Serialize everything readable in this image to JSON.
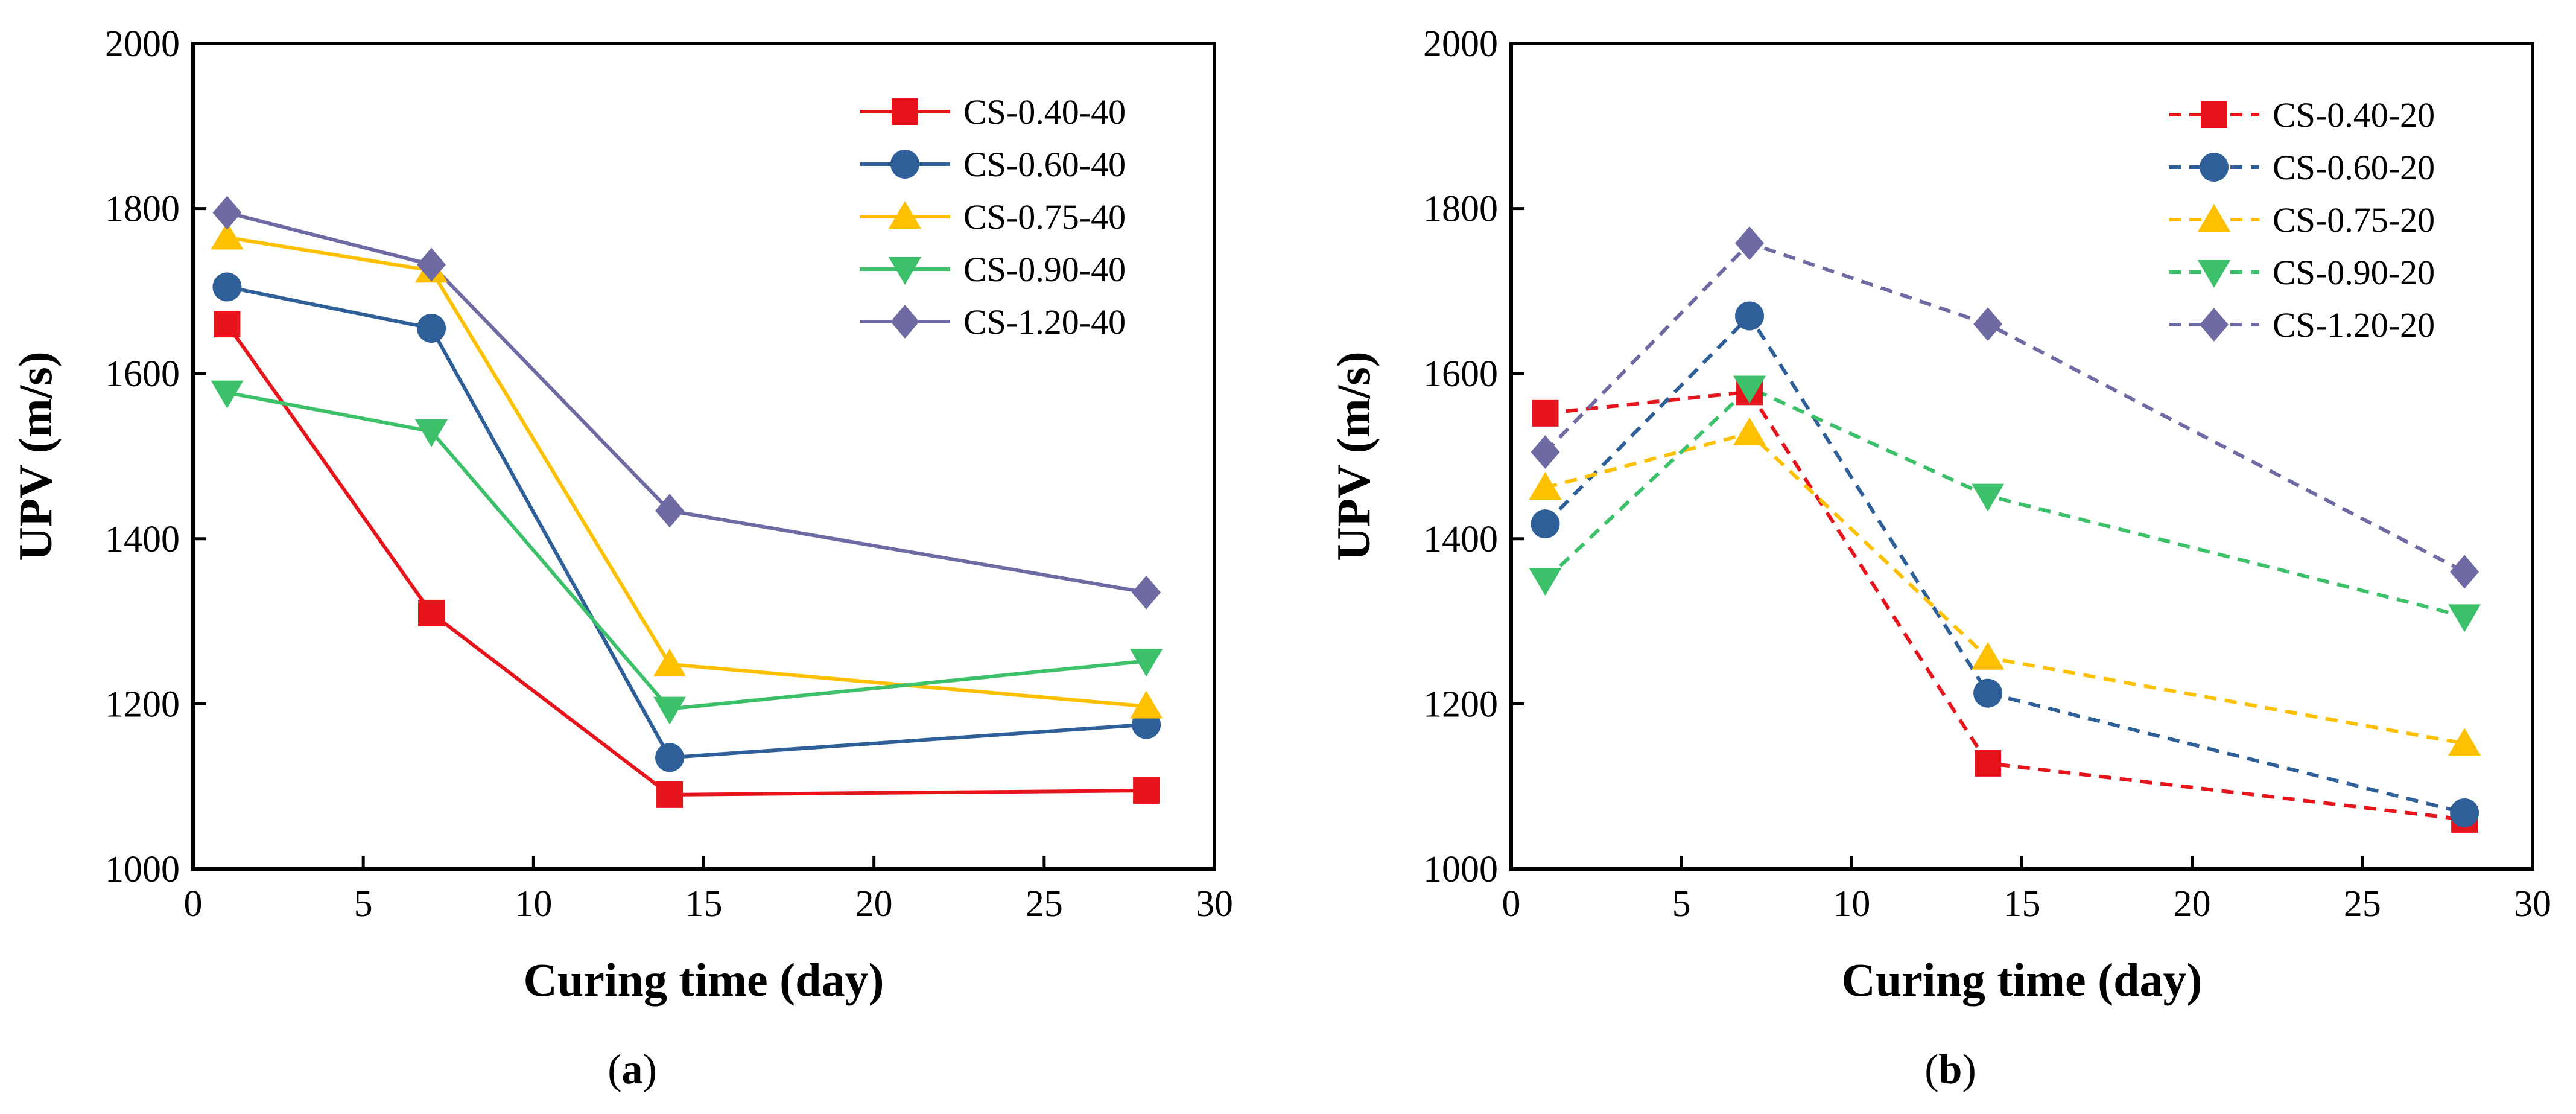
{
  "figure": {
    "panel_labels": [
      {
        "open": "(",
        "letter": "a",
        "close": ")"
      },
      {
        "open": "(",
        "letter": "b",
        "close": ")"
      }
    ]
  },
  "chart_data": [
    {
      "type": "line",
      "panel": "a",
      "title": "",
      "xlabel": "Curing time (day)",
      "ylabel": "UPV (m/s)",
      "xlim": [
        0,
        30
      ],
      "ylim": [
        1000,
        2000
      ],
      "xticks": [
        0,
        5,
        10,
        15,
        20,
        25,
        30
      ],
      "yticks": [
        1000,
        1200,
        1400,
        1600,
        1800,
        2000
      ],
      "legend_position": "top-right",
      "line_style": "solid",
      "x": [
        1,
        7,
        14,
        28
      ],
      "series": [
        {
          "name": "CS-0.40-40",
          "color": "#e8141b",
          "marker": "square",
          "values": [
            1660,
            1310,
            1090,
            1095
          ]
        },
        {
          "name": "CS-0.60-40",
          "color": "#2f5f98",
          "marker": "circle",
          "values": [
            1705,
            1655,
            1135,
            1175
          ]
        },
        {
          "name": "CS-0.75-40",
          "color": "#ffc000",
          "marker": "triangle-up",
          "values": [
            1765,
            1725,
            1248,
            1197
          ]
        },
        {
          "name": "CS-0.90-40",
          "color": "#3cc06a",
          "marker": "triangle-down",
          "values": [
            1577,
            1530,
            1194,
            1252
          ]
        },
        {
          "name": "CS-1.20-40",
          "color": "#6e6aa4",
          "marker": "diamond",
          "values": [
            1795,
            1732,
            1434,
            1335
          ]
        }
      ]
    },
    {
      "type": "line",
      "panel": "b",
      "title": "",
      "xlabel": "Curing time (day)",
      "ylabel": "UPV (m/s)",
      "xlim": [
        0,
        30
      ],
      "ylim": [
        1000,
        2000
      ],
      "xticks": [
        0,
        5,
        10,
        15,
        20,
        25,
        30
      ],
      "yticks": [
        1000,
        1200,
        1400,
        1600,
        1800,
        2000
      ],
      "legend_position": "top-right",
      "line_style": "dashed",
      "x": [
        1,
        7,
        14,
        28
      ],
      "series": [
        {
          "name": "CS-0.40-20",
          "color": "#e8141b",
          "marker": "square",
          "values": [
            1552,
            1578,
            1128,
            1060
          ]
        },
        {
          "name": "CS-0.60-20",
          "color": "#2f5f98",
          "marker": "circle",
          "values": [
            1418,
            1670,
            1213,
            1068
          ]
        },
        {
          "name": "CS-0.75-20",
          "color": "#ffc000",
          "marker": "triangle-up",
          "values": [
            1462,
            1528,
            1256,
            1152
          ]
        },
        {
          "name": "CS-0.90-20",
          "color": "#3cc06a",
          "marker": "triangle-down",
          "values": [
            1350,
            1583,
            1452,
            1306
          ]
        },
        {
          "name": "CS-1.20-20",
          "color": "#6e6aa4",
          "marker": "diamond",
          "values": [
            1505,
            1758,
            1660,
            1360
          ]
        }
      ]
    }
  ]
}
